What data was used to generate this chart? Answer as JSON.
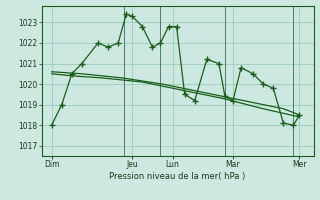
{
  "bg_color": "#cce8e0",
  "grid_color": "#99ccbb",
  "line_color": "#1a5e1a",
  "xlabel": "Pression niveau de la mer( hPa )",
  "ylim": [
    1016.5,
    1023.8
  ],
  "yticks": [
    1017,
    1018,
    1019,
    1020,
    1021,
    1022,
    1023
  ],
  "xlim": [
    0,
    13.5
  ],
  "day_labels": [
    "Dim",
    "Jeu",
    "Lun",
    "Mar",
    "Mer"
  ],
  "day_positions": [
    0.5,
    4.5,
    6.5,
    9.5,
    12.8
  ],
  "vline_positions": [
    4.1,
    5.9,
    9.1,
    12.5
  ],
  "series1_x": [
    0.5,
    1.0,
    1.5,
    2.0,
    2.8,
    3.3,
    3.8,
    4.2,
    4.5,
    5.0,
    5.5,
    5.9,
    6.3,
    6.7,
    7.1,
    7.6,
    8.2,
    8.8,
    9.1,
    9.5,
    9.9,
    10.5,
    11.0,
    11.5,
    12.0,
    12.5,
    12.8
  ],
  "series1_y": [
    1018.0,
    1019.0,
    1020.5,
    1021.0,
    1022.0,
    1021.8,
    1022.0,
    1023.4,
    1023.3,
    1022.8,
    1021.8,
    1022.0,
    1022.8,
    1022.8,
    1019.5,
    1019.2,
    1021.2,
    1021.0,
    1019.4,
    1019.2,
    1020.8,
    1020.5,
    1020.0,
    1019.8,
    1018.1,
    1018.0,
    1018.5
  ],
  "series2_x": [
    0.5,
    1.5,
    3.0,
    5.0,
    7.0,
    9.0,
    11.0,
    12.8
  ],
  "series2_y": [
    1020.5,
    1020.4,
    1020.3,
    1020.1,
    1019.7,
    1019.3,
    1018.8,
    1018.4
  ],
  "series3_x": [
    0.5,
    2.0,
    4.0,
    6.0,
    8.0,
    10.0,
    12.0,
    12.8
  ],
  "series3_y": [
    1020.6,
    1020.5,
    1020.3,
    1020.0,
    1019.6,
    1019.2,
    1018.8,
    1018.5
  ],
  "series1_marker": "+",
  "marker_size": 4,
  "line_width": 0.9
}
